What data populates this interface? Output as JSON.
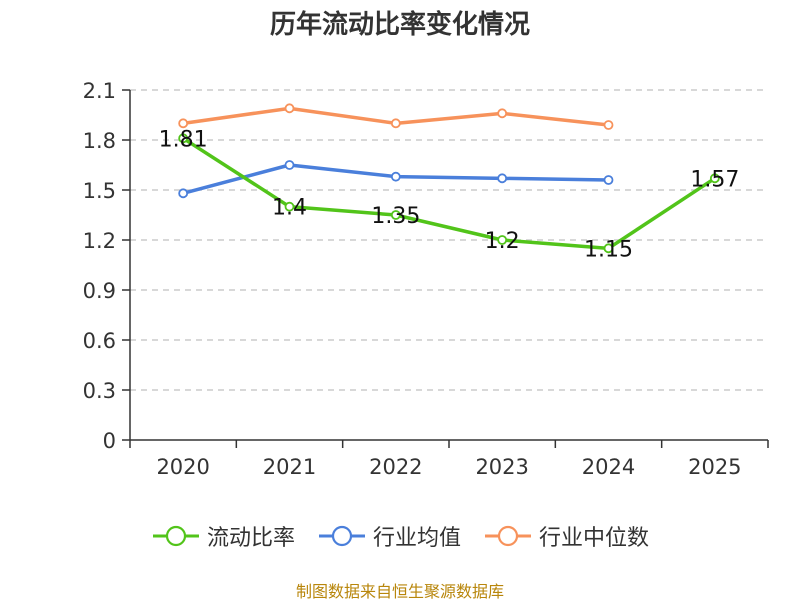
{
  "chart_data": {
    "type": "line",
    "title": "历年流动比率变化情况",
    "categories": [
      "2020",
      "2021",
      "2022",
      "2023",
      "2024",
      "2025"
    ],
    "ylim": [
      0,
      2.1
    ],
    "yticks": [
      "0",
      "0.3",
      "0.6",
      "0.9",
      "1.2",
      "1.5",
      "1.8",
      "2.1"
    ],
    "grid": true,
    "legend_position": "bottom",
    "series": [
      {
        "name": "流动比率",
        "color": "#52c41a",
        "values": [
          1.81,
          1.4,
          1.35,
          1.2,
          1.15,
          1.57
        ],
        "labels": [
          "1.81",
          "1.4",
          "1.35",
          "1.2",
          "1.15",
          "1.57"
        ],
        "show_labels": true
      },
      {
        "name": "行业均值",
        "color": "#4a7fdb",
        "values": [
          1.48,
          1.65,
          1.58,
          1.57,
          1.56,
          null
        ],
        "show_labels": false
      },
      {
        "name": "行业中位数",
        "color": "#f7925b",
        "values": [
          1.9,
          1.99,
          1.9,
          1.96,
          1.89,
          null
        ],
        "show_labels": false
      }
    ]
  },
  "source_note": "制图数据来自恒生聚源数据库"
}
